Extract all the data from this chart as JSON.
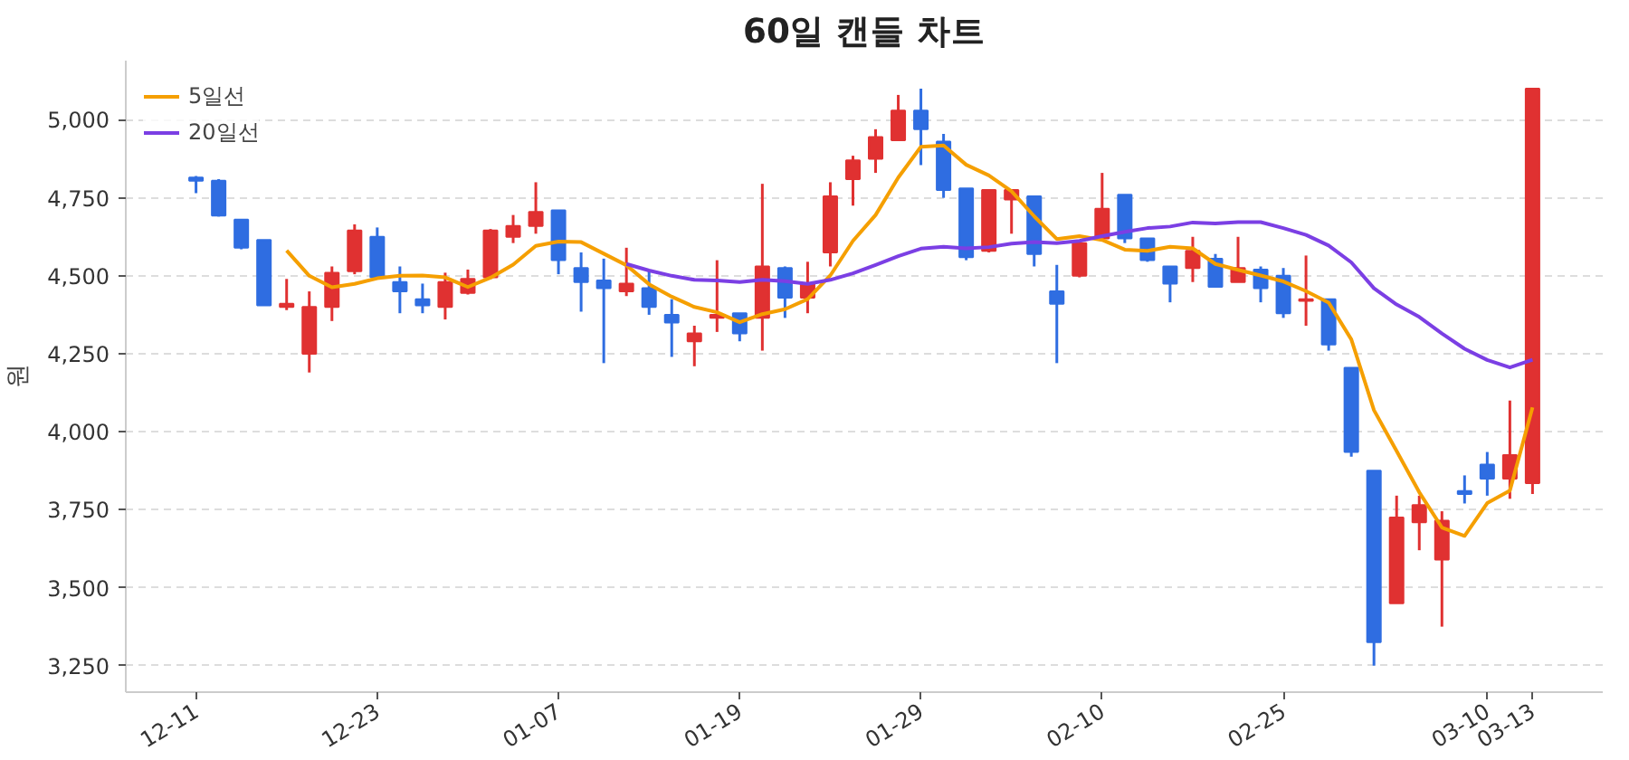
{
  "chart_data": {
    "type": "candlestick",
    "title": "60일 캔들 차트",
    "ylabel": "원",
    "categories": [
      "12-11",
      null,
      null,
      null,
      null,
      null,
      null,
      null,
      "12-23",
      null,
      null,
      null,
      null,
      null,
      null,
      null,
      "01-07",
      null,
      null,
      null,
      null,
      null,
      null,
      null,
      "01-19",
      null,
      null,
      null,
      null,
      null,
      null,
      null,
      "01-29",
      null,
      null,
      null,
      null,
      null,
      null,
      null,
      "02-10",
      null,
      null,
      null,
      null,
      null,
      null,
      null,
      "02-25",
      null,
      null,
      null,
      null,
      null,
      null,
      null,
      null,
      "03-10",
      null,
      "03-13"
    ],
    "ohlc": [
      [
        4815,
        4820,
        4765,
        4805
      ],
      [
        4805,
        4810,
        4690,
        4693
      ],
      [
        4680,
        4680,
        4585,
        4590
      ],
      [
        4615,
        4615,
        4405,
        4405
      ],
      [
        4400,
        4490,
        4390,
        4410
      ],
      [
        4250,
        4450,
        4190,
        4400
      ],
      [
        4400,
        4530,
        4355,
        4510
      ],
      [
        4515,
        4665,
        4505,
        4645
      ],
      [
        4625,
        4655,
        4490,
        4495
      ],
      [
        4480,
        4530,
        4380,
        4450
      ],
      [
        4425,
        4475,
        4380,
        4405
      ],
      [
        4400,
        4510,
        4360,
        4480
      ],
      [
        4445,
        4520,
        4440,
        4490
      ],
      [
        4495,
        4650,
        4490,
        4645
      ],
      [
        4625,
        4695,
        4605,
        4660
      ],
      [
        4660,
        4800,
        4635,
        4705
      ],
      [
        4710,
        4710,
        4505,
        4550
      ],
      [
        4525,
        4575,
        4385,
        4480
      ],
      [
        4485,
        4555,
        4220,
        4460
      ],
      [
        4450,
        4590,
        4435,
        4475
      ],
      [
        4460,
        4520,
        4375,
        4400
      ],
      [
        4375,
        4425,
        4240,
        4350
      ],
      [
        4290,
        4340,
        4210,
        4315
      ],
      [
        4365,
        4550,
        4320,
        4375
      ],
      [
        4380,
        4380,
        4290,
        4315
      ],
      [
        4365,
        4795,
        4260,
        4530
      ],
      [
        4525,
        4530,
        4365,
        4430
      ],
      [
        4430,
        4545,
        4380,
        4475
      ],
      [
        4575,
        4800,
        4530,
        4755
      ],
      [
        4810,
        4885,
        4725,
        4870
      ],
      [
        4875,
        4970,
        4830,
        4945
      ],
      [
        4935,
        5080,
        4935,
        5030
      ],
      [
        5030,
        5100,
        4855,
        4970
      ],
      [
        4930,
        4955,
        4750,
        4775
      ],
      [
        4780,
        4780,
        4550,
        4560
      ],
      [
        4580,
        4775,
        4575,
        4775
      ],
      [
        4745,
        4775,
        4635,
        4775
      ],
      [
        4755,
        4755,
        4530,
        4570
      ],
      [
        4450,
        4535,
        4220,
        4410
      ],
      [
        4500,
        4605,
        4495,
        4605
      ],
      [
        4620,
        4830,
        4610,
        4715
      ],
      [
        4760,
        4760,
        4605,
        4620
      ],
      [
        4620,
        4620,
        4545,
        4550
      ],
      [
        4530,
        4530,
        4415,
        4475
      ],
      [
        4525,
        4625,
        4480,
        4580
      ],
      [
        4555,
        4570,
        4465,
        4465
      ],
      [
        4480,
        4625,
        4480,
        4525
      ],
      [
        4520,
        4530,
        4415,
        4460
      ],
      [
        4500,
        4525,
        4365,
        4380
      ],
      [
        4420,
        4565,
        4340,
        4425
      ],
      [
        4425,
        4425,
        4260,
        4280
      ],
      [
        4205,
        4205,
        3920,
        3935
      ],
      [
        3875,
        3875,
        3250,
        3325
      ],
      [
        3450,
        3795,
        3450,
        3725
      ],
      [
        3710,
        3795,
        3620,
        3765
      ],
      [
        3590,
        3745,
        3375,
        3715
      ],
      [
        3810,
        3860,
        3770,
        3800
      ],
      [
        3895,
        3935,
        3795,
        3850
      ],
      [
        3850,
        4100,
        3785,
        3925
      ],
      [
        3835,
        5100,
        3800,
        5100
      ]
    ],
    "colors": [
      "#2f6de1",
      "#2f6de1",
      "#2f6de1",
      "#2f6de1",
      "#e03131",
      "#e03131",
      "#e03131",
      "#e03131",
      "#2f6de1",
      "#2f6de1",
      "#2f6de1",
      "#e03131",
      "#e03131",
      "#e03131",
      "#e03131",
      "#e03131",
      "#2f6de1",
      "#2f6de1",
      "#2f6de1",
      "#e03131",
      "#2f6de1",
      "#2f6de1",
      "#e03131",
      "#e03131",
      "#2f6de1",
      "#e03131",
      "#2f6de1",
      "#e03131",
      "#e03131",
      "#e03131",
      "#e03131",
      "#e03131",
      "#2f6de1",
      "#2f6de1",
      "#2f6de1",
      "#e03131",
      "#e03131",
      "#2f6de1",
      "#2f6de1",
      "#e03131",
      "#e03131",
      "#2f6de1",
      "#2f6de1",
      "#2f6de1",
      "#e03131",
      "#2f6de1",
      "#e03131",
      "#2f6de1",
      "#2f6de1",
      "#e03131",
      "#2f6de1",
      "#2f6de1",
      "#2f6de1",
      "#e03131",
      "#e03131",
      "#e03131",
      "#2f6de1",
      "#2f6de1",
      "#e03131",
      "#e03131"
    ],
    "series": [
      {
        "type": "line",
        "name": "5일선",
        "color": "#f59f00",
        "values": [
          null,
          null,
          null,
          null,
          4581,
          4500,
          4463,
          4474,
          4492,
          4500,
          4501,
          4495,
          4464,
          4494,
          4536,
          4596,
          4610,
          4608,
          4571,
          4534,
          4473,
          4433,
          4400,
          4383,
          4351,
          4377,
          4393,
          4425,
          4501,
          4612,
          4695,
          4815,
          4914,
          4918,
          4856,
          4822,
          4771,
          4691,
          4618,
          4627,
          4615,
          4584,
          4580,
          4593,
          4588,
          4538,
          4519,
          4501,
          4482,
          4451,
          4414,
          4296,
          4069,
          3938,
          3806,
          3693,
          3666,
          3771,
          3811,
          4078
        ]
      },
      {
        "type": "line",
        "name": "20일선",
        "color": "#7b3fe4",
        "values": [
          null,
          null,
          null,
          null,
          null,
          null,
          null,
          null,
          null,
          null,
          null,
          null,
          null,
          null,
          null,
          null,
          null,
          null,
          null,
          4538,
          4517,
          4500,
          4487,
          4485,
          4480,
          4487,
          4483,
          4474,
          4487,
          4508,
          4535,
          4563,
          4587,
          4593,
          4588,
          4592,
          4603,
          4608,
          4605,
          4612,
          4627,
          4641,
          4653,
          4658,
          4671,
          4668,
          4672,
          4672,
          4653,
          4631,
          4597,
          4543,
          4460,
          4408,
          4368,
          4315,
          4266,
          4230,
          4206,
          4231
        ]
      }
    ],
    "ylim": [
      3165,
      5190
    ],
    "yticks": [
      {
        "value": 3250,
        "label": "3,250"
      },
      {
        "value": 3500,
        "label": "3,500"
      },
      {
        "value": 3750,
        "label": "3,750"
      },
      {
        "value": 4000,
        "label": "4,000"
      },
      {
        "value": 4250,
        "label": "4,250"
      },
      {
        "value": 4500,
        "label": "4,500"
      },
      {
        "value": 4750,
        "label": "4,750"
      },
      {
        "value": 5000,
        "label": "5,000"
      }
    ],
    "grid": "y",
    "legend": "top left"
  }
}
